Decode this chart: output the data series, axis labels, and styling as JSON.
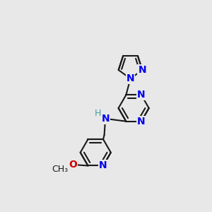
{
  "bg_color": "#e8e8e8",
  "bond_color": "#1a1a1a",
  "N_color": "#0000ee",
  "O_color": "#cc0000",
  "H_color": "#4a9a9a",
  "line_width": 1.5,
  "font_size": 10,
  "fig_size": [
    3.0,
    3.0
  ],
  "dpi": 100,
  "xlim": [
    0,
    300
  ],
  "ylim": [
    0,
    300
  ]
}
